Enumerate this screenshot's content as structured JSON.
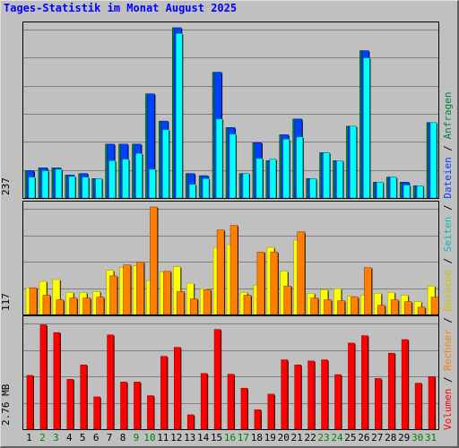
{
  "title": "Tages-Statistik im Monat August 2025",
  "colors": {
    "volumen": "#ff0000",
    "rechner": "#ff8000",
    "besuche": "#ffff00",
    "seiten": "#00ffff",
    "dateien": "#0040ff",
    "anfragen": "#008040",
    "weekend_label": "#008000",
    "weekday_label": "#000000"
  },
  "legend": {
    "volumen": "Volumen",
    "rechner": "Rechner",
    "besuche": "Besuche",
    "seiten": "Seiten",
    "dateien": "Dateien",
    "anfragen": "Anfragen",
    "sep": " / "
  },
  "chart_data": [
    {
      "type": "bar",
      "name": "requests-panel",
      "ymax_label": "237",
      "ylim": [
        0,
        237
      ],
      "categories": [
        "1",
        "2",
        "3",
        "4",
        "5",
        "6",
        "7",
        "8",
        "9",
        "10",
        "11",
        "12",
        "13",
        "14",
        "15",
        "16",
        "17",
        "18",
        "19",
        "20",
        "21",
        "22",
        "23",
        "24",
        "25",
        "26",
        "27",
        "28",
        "29",
        "30",
        "31"
      ],
      "weekend": [
        false,
        true,
        true,
        false,
        false,
        false,
        false,
        false,
        true,
        true,
        false,
        false,
        false,
        false,
        false,
        true,
        true,
        false,
        false,
        false,
        false,
        false,
        true,
        true,
        false,
        false,
        false,
        false,
        false,
        true,
        true
      ],
      "series": [
        {
          "key": "anfragen",
          "values": [
            38,
            42,
            42,
            32,
            34,
            27,
            75,
            75,
            75,
            145,
            107,
            237,
            34,
            31,
            175,
            98,
            34,
            77,
            52,
            88,
            110,
            27,
            63,
            52,
            100,
            205,
            22,
            29,
            22,
            17,
            105
          ]
        },
        {
          "key": "dateien",
          "values": [
            38,
            42,
            42,
            32,
            34,
            27,
            75,
            75,
            75,
            145,
            107,
            237,
            34,
            31,
            175,
            98,
            34,
            77,
            52,
            88,
            110,
            27,
            63,
            52,
            100,
            205,
            22,
            29,
            22,
            17,
            105
          ]
        },
        {
          "key": "seiten",
          "values": [
            29,
            38,
            40,
            30,
            29,
            27,
            52,
            54,
            62,
            40,
            95,
            229,
            19,
            27,
            110,
            89,
            34,
            55,
            54,
            82,
            85,
            27,
            63,
            52,
            100,
            195,
            22,
            29,
            18,
            17,
            105
          ]
        }
      ]
    },
    {
      "type": "bar",
      "name": "visits-panel",
      "ymax_label": "117",
      "ylim": [
        0,
        117
      ],
      "series": [
        {
          "key": "besuche",
          "values": [
            29,
            36,
            38,
            24,
            24,
            25,
            48,
            51,
            53,
            37,
            46,
            52,
            34,
            28,
            73,
            76,
            24,
            32,
            73,
            47,
            81,
            23,
            27,
            28,
            20,
            21,
            23,
            24,
            21,
            14,
            31
          ]
        },
        {
          "key": "rechner",
          "values": [
            29,
            21,
            16,
            18,
            18,
            19,
            42,
            54,
            57,
            117,
            47,
            25,
            17,
            27,
            92,
            97,
            21,
            68,
            68,
            31,
            90,
            18,
            16,
            15,
            19,
            51,
            10,
            16,
            14,
            8,
            19
          ]
        }
      ]
    },
    {
      "type": "bar",
      "name": "volume-panel",
      "ymax_label": "2.76 MB",
      "ylim": [
        0,
        2.76
      ],
      "series": [
        {
          "key": "volumen",
          "values": [
            1.38,
            2.68,
            2.48,
            1.28,
            1.65,
            0.83,
            2.42,
            1.21,
            1.21,
            0.86,
            1.87,
            2.1,
            0.37,
            1.43,
            2.56,
            1.41,
            1.05,
            0.5,
            0.9,
            1.78,
            1.65,
            1.75,
            1.78,
            1.4,
            2.21,
            2.4,
            1.3,
            1.95,
            2.3,
            1.18,
            1.35
          ]
        }
      ]
    }
  ]
}
